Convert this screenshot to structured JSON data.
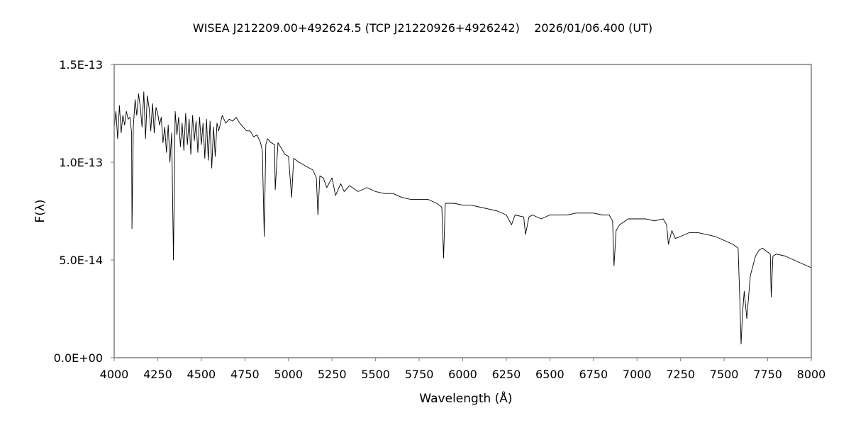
{
  "chart_data": {
    "type": "line",
    "title": "WISEA J212209.00+492624.5 (TCP J21220926+4926242)    2026/01/06.400 (UT)",
    "xlabel": "Wavelength (Å)",
    "ylabel": "F(λ)",
    "xlim": [
      4000,
      8000
    ],
    "ylim": [
      0,
      1.5e-13
    ],
    "x_ticks": [
      4000,
      4250,
      4500,
      4750,
      5000,
      5250,
      5500,
      5750,
      6000,
      6250,
      6500,
      6750,
      7000,
      7250,
      7500,
      7750,
      8000
    ],
    "x_tick_labels": [
      "4000",
      "4250",
      "4500",
      "4750",
      "5000",
      "5250",
      "5500",
      "5750",
      "6000",
      "6250",
      "6500",
      "6750",
      "7000",
      "7250",
      "7500",
      "7750",
      "8000"
    ],
    "y_ticks": [
      0,
      5e-14,
      1e-13,
      1.5e-13
    ],
    "y_tick_labels": [
      "0.0E+00",
      "5.0E-14",
      "1.0E-13",
      "1.5E-13"
    ],
    "grid": false,
    "legend": "none",
    "line_color": "#000000",
    "series": [
      {
        "values_unit": "1e-14",
        "x": [
          4000,
          4010,
          4020,
          4030,
          4040,
          4050,
          4060,
          4070,
          4080,
          4090,
          4100,
          4102,
          4110,
          4120,
          4130,
          4140,
          4150,
          4160,
          4170,
          4180,
          4190,
          4200,
          4210,
          4220,
          4230,
          4240,
          4250,
          4260,
          4270,
          4280,
          4290,
          4300,
          4310,
          4320,
          4330,
          4340,
          4350,
          4360,
          4370,
          4380,
          4390,
          4400,
          4410,
          4420,
          4430,
          4440,
          4450,
          4460,
          4470,
          4480,
          4490,
          4500,
          4510,
          4520,
          4530,
          4540,
          4550,
          4560,
          4570,
          4580,
          4590,
          4600,
          4620,
          4640,
          4660,
          4680,
          4700,
          4720,
          4740,
          4760,
          4780,
          4800,
          4820,
          4840,
          4850,
          4861,
          4870,
          4880,
          4900,
          4920,
          4924,
          4940,
          4960,
          4980,
          5000,
          5018,
          5030,
          5060,
          5100,
          5140,
          5160,
          5169,
          5180,
          5200,
          5220,
          5250,
          5270,
          5300,
          5320,
          5350,
          5400,
          5450,
          5500,
          5550,
          5600,
          5650,
          5700,
          5750,
          5800,
          5850,
          5880,
          5890,
          5900,
          5950,
          6000,
          6050,
          6100,
          6150,
          6200,
          6250,
          6280,
          6300,
          6350,
          6360,
          6380,
          6400,
          6450,
          6500,
          6550,
          6600,
          6650,
          6700,
          6750,
          6800,
          6840,
          6860,
          6868,
          6880,
          6900,
          6950,
          7000,
          7050,
          7100,
          7150,
          7170,
          7180,
          7200,
          7220,
          7250,
          7300,
          7350,
          7400,
          7450,
          7500,
          7550,
          7580,
          7590,
          7597,
          7605,
          7615,
          7630,
          7650,
          7680,
          7700,
          7720,
          7750,
          7765,
          7770,
          7780,
          7800,
          7850,
          7900,
          7950,
          8000
        ],
        "values": [
          11.8,
          12.6,
          11.2,
          12.9,
          11.5,
          12.4,
          11.9,
          12.6,
          12.2,
          12.3,
          11.5,
          6.6,
          11.8,
          13.2,
          12.4,
          13.5,
          12.8,
          11.8,
          13.6,
          11.2,
          13.4,
          12.8,
          11.6,
          13.0,
          11.5,
          12.8,
          12.5,
          11.9,
          12.3,
          11.0,
          11.8,
          10.5,
          11.9,
          10.0,
          11.5,
          5.0,
          12.6,
          11.4,
          12.3,
          10.8,
          12.0,
          10.6,
          12.5,
          10.9,
          12.2,
          10.4,
          12.4,
          11.1,
          12.1,
          10.5,
          12.3,
          10.9,
          12.0,
          10.2,
          12.2,
          10.1,
          12.1,
          9.7,
          11.8,
          10.3,
          12.0,
          11.6,
          12.4,
          12.0,
          12.2,
          12.1,
          12.3,
          12.0,
          11.8,
          11.6,
          11.6,
          11.3,
          11.4,
          11.0,
          10.6,
          6.2,
          10.9,
          11.2,
          11.0,
          10.9,
          8.6,
          11.0,
          10.7,
          10.4,
          10.3,
          8.2,
          10.2,
          10.0,
          9.8,
          9.6,
          9.2,
          7.3,
          9.3,
          9.2,
          8.7,
          9.2,
          8.3,
          8.9,
          8.5,
          8.8,
          8.5,
          8.7,
          8.5,
          8.4,
          8.4,
          8.2,
          8.1,
          8.1,
          8.1,
          7.9,
          7.7,
          5.1,
          7.9,
          7.9,
          7.8,
          7.8,
          7.7,
          7.6,
          7.5,
          7.3,
          6.8,
          7.3,
          7.2,
          6.3,
          7.2,
          7.3,
          7.1,
          7.3,
          7.3,
          7.3,
          7.4,
          7.4,
          7.4,
          7.3,
          7.3,
          7.0,
          4.7,
          6.5,
          6.8,
          7.1,
          7.1,
          7.1,
          7.0,
          7.1,
          6.8,
          5.8,
          6.5,
          6.1,
          6.2,
          6.4,
          6.4,
          6.3,
          6.2,
          6.0,
          5.8,
          5.6,
          3.0,
          0.7,
          2.2,
          3.4,
          2.0,
          4.2,
          5.2,
          5.5,
          5.6,
          5.4,
          5.3,
          3.1,
          5.2,
          5.3,
          5.2,
          5.0,
          4.8,
          4.6
        ]
      }
    ]
  }
}
